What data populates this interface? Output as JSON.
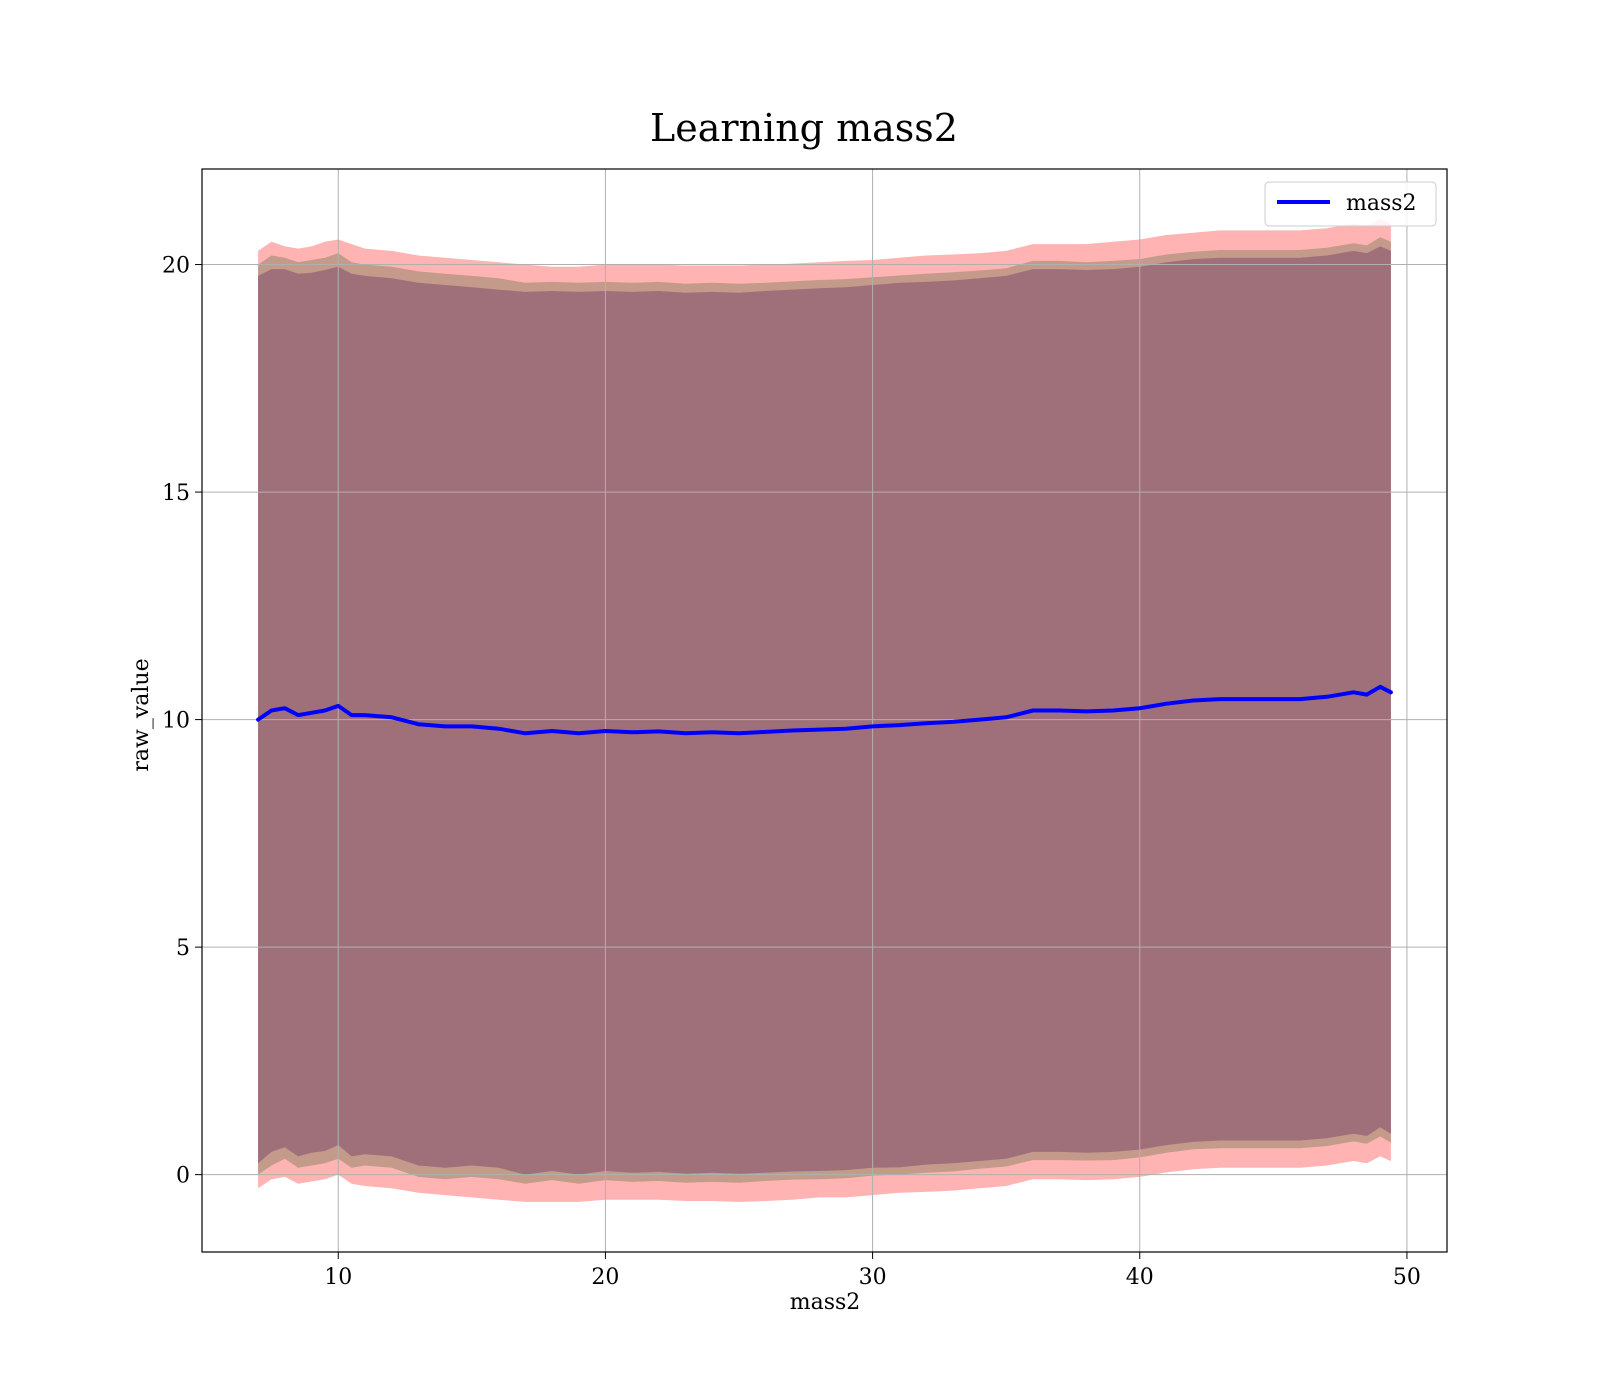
{
  "chart_data": {
    "type": "area",
    "title": "Learning mass2",
    "xlabel": "mass2",
    "ylabel": "raw_value",
    "xlim": [
      4.9,
      51.5
    ],
    "ylim": [
      -1.7,
      22.1
    ],
    "xticks": [
      10,
      20,
      30,
      40,
      50
    ],
    "yticks": [
      0,
      5,
      10,
      15,
      20
    ],
    "grid": true,
    "legend": {
      "placement": "top-right",
      "entries": [
        "mass2"
      ]
    },
    "colors": {
      "line": "#0000ff",
      "outer_band": "#ffb3b3",
      "middle_band": "#c49a8a",
      "inner_band": "#a0707a"
    },
    "x": [
      7.0,
      7.5,
      8.0,
      8.5,
      9.0,
      9.5,
      10.0,
      10.5,
      11.0,
      12.0,
      13.0,
      14.0,
      15.0,
      16.0,
      17.0,
      18.0,
      19.0,
      20.0,
      21.0,
      22.0,
      23.0,
      24.0,
      25.0,
      26.0,
      27.0,
      28.0,
      29.0,
      30.0,
      31.0,
      32.0,
      33.0,
      34.0,
      35.0,
      36.0,
      37.0,
      38.0,
      39.0,
      40.0,
      41.0,
      42.0,
      43.0,
      44.0,
      45.0,
      46.0,
      47.0,
      48.0,
      48.5,
      49.0,
      49.4
    ],
    "series": [
      {
        "name": "mass2",
        "values": [
          10.0,
          10.2,
          10.25,
          10.1,
          10.15,
          10.2,
          10.3,
          10.1,
          10.1,
          10.05,
          9.9,
          9.85,
          9.85,
          9.8,
          9.7,
          9.75,
          9.7,
          9.75,
          9.72,
          9.74,
          9.7,
          9.72,
          9.7,
          9.73,
          9.76,
          9.78,
          9.8,
          9.85,
          9.88,
          9.92,
          9.95,
          10.0,
          10.05,
          10.2,
          10.2,
          10.18,
          10.2,
          10.25,
          10.35,
          10.42,
          10.45,
          10.45,
          10.45,
          10.45,
          10.5,
          10.6,
          10.55,
          10.72,
          10.6
        ]
      }
    ],
    "bands": [
      {
        "upper": [
          20.3,
          20.5,
          20.4,
          20.35,
          20.4,
          20.5,
          20.55,
          20.45,
          20.35,
          20.3,
          20.2,
          20.15,
          20.1,
          20.05,
          20.0,
          19.95,
          19.95,
          20.0,
          20.0,
          20.0,
          19.98,
          19.98,
          19.98,
          20.0,
          20.02,
          20.05,
          20.08,
          20.1,
          20.15,
          20.2,
          20.22,
          20.25,
          20.3,
          20.45,
          20.45,
          20.45,
          20.5,
          20.55,
          20.65,
          20.7,
          20.75,
          20.75,
          20.75,
          20.75,
          20.8,
          20.9,
          20.85,
          21.0,
          20.9
        ],
        "lower": [
          -0.3,
          -0.1,
          -0.05,
          -0.2,
          -0.15,
          -0.1,
          0.0,
          -0.2,
          -0.25,
          -0.3,
          -0.4,
          -0.45,
          -0.5,
          -0.55,
          -0.6,
          -0.6,
          -0.6,
          -0.55,
          -0.55,
          -0.55,
          -0.58,
          -0.58,
          -0.6,
          -0.58,
          -0.55,
          -0.5,
          -0.5,
          -0.45,
          -0.4,
          -0.38,
          -0.35,
          -0.3,
          -0.25,
          -0.1,
          -0.1,
          -0.12,
          -0.1,
          -0.05,
          0.05,
          0.12,
          0.15,
          0.15,
          0.15,
          0.15,
          0.2,
          0.3,
          0.25,
          0.4,
          0.3
        ]
      },
      {
        "upper": [
          20.0,
          20.2,
          20.15,
          20.05,
          20.1,
          20.15,
          20.25,
          20.05,
          20.0,
          19.95,
          19.85,
          19.8,
          19.75,
          19.7,
          19.6,
          19.62,
          19.6,
          19.62,
          19.6,
          19.62,
          19.58,
          19.6,
          19.58,
          19.6,
          19.63,
          19.66,
          19.68,
          19.72,
          19.76,
          19.8,
          19.83,
          19.87,
          19.92,
          20.08,
          20.08,
          20.05,
          20.08,
          20.12,
          20.22,
          20.28,
          20.32,
          20.32,
          20.32,
          20.32,
          20.37,
          20.47,
          20.42,
          20.6,
          20.5
        ]
      },
      {
        "upper": [
          19.75,
          19.9,
          19.9,
          19.8,
          19.82,
          19.88,
          19.95,
          19.8,
          19.75,
          19.7,
          19.6,
          19.55,
          19.5,
          19.45,
          19.4,
          19.42,
          19.4,
          19.42,
          19.4,
          19.42,
          19.38,
          19.4,
          19.38,
          19.42,
          19.45,
          19.48,
          19.5,
          19.55,
          19.6,
          19.62,
          19.65,
          19.7,
          19.75,
          19.9,
          19.9,
          19.88,
          19.9,
          19.95,
          20.05,
          20.12,
          20.15,
          20.15,
          20.15,
          20.15,
          20.2,
          20.3,
          20.25,
          20.4,
          20.3
        ]
      }
    ]
  }
}
